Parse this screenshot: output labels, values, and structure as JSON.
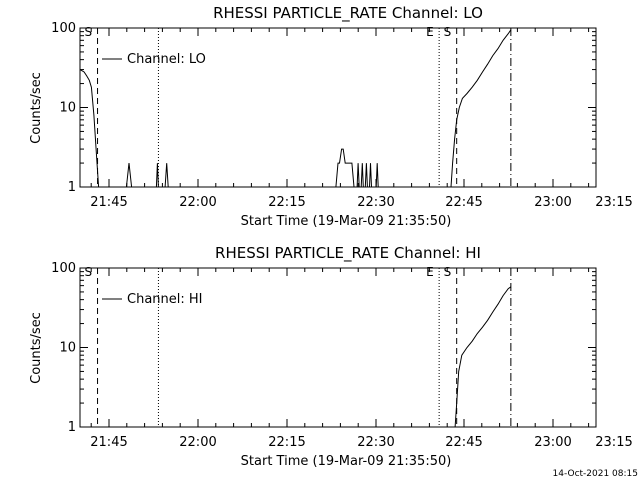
{
  "footer_timestamp": "14-Oct-2021 08:15",
  "chart_data": [
    {
      "type": "line",
      "title": "RHESSI PARTICLE_RATE Channel: LO",
      "xlabel": "Start Time (19-Mar-09 21:35:50)",
      "ylabel": "Counts/sec",
      "x_unit": "minutes after 21:35:50",
      "xlim": [
        0,
        100
      ],
      "ylim": [
        1,
        100
      ],
      "yscale": "log",
      "xticks": [
        "21:45",
        "22:00",
        "22:15",
        "22:30",
        "22:45",
        "23:00",
        "23:15"
      ],
      "yticks": [
        "1",
        "10",
        "100"
      ],
      "legend": "Channel: LO",
      "markers": [
        {
          "label": "S",
          "style": "dashed",
          "x": 3.4
        },
        {
          "label": "",
          "style": "dotted",
          "x": 15.2
        },
        {
          "label": "E",
          "style": "dotted",
          "x": 69.6
        },
        {
          "label": "S",
          "style": "dashed",
          "x": 73.0
        },
        {
          "label": "",
          "style": "dashdot",
          "x": 83.5
        }
      ],
      "series": [
        {
          "name": "Channel: LO",
          "segments": [
            {
              "x": [
                0,
                0.8,
                1.3,
                1.8,
                2.2,
                2.7,
                3.2,
                3.6
              ],
              "y": [
                30,
                28,
                25,
                22,
                18,
                8,
                2.5,
                1
              ]
            },
            {
              "x": [
                9.0,
                9.5,
                10.0
              ],
              "y": [
                1,
                2,
                1
              ]
            },
            {
              "x": [
                14.8,
                15.0,
                15.2
              ],
              "y": [
                1,
                2,
                1
              ]
            },
            {
              "x": [
                16.5,
                16.8,
                17.1
              ],
              "y": [
                1,
                2,
                1
              ]
            },
            {
              "x": [
                49.6,
                50.0,
                50.3,
                50.7,
                51.0,
                51.4,
                51.8,
                52.3,
                52.7,
                53.1
              ],
              "y": [
                1,
                2,
                2,
                3,
                3,
                2,
                2,
                2,
                2,
                1
              ]
            },
            {
              "x": [
                53.7,
                53.9,
                54.1
              ],
              "y": [
                1,
                2,
                1
              ]
            },
            {
              "x": [
                54.5,
                54.7,
                54.9
              ],
              "y": [
                1,
                2,
                1
              ]
            },
            {
              "x": [
                55.3,
                55.5,
                55.7
              ],
              "y": [
                1,
                2,
                1
              ]
            },
            {
              "x": [
                56.1,
                56.3,
                56.5
              ],
              "y": [
                1,
                2,
                1
              ]
            },
            {
              "x": [
                57.4,
                57.6,
                57.8
              ],
              "y": [
                1,
                2,
                1
              ]
            },
            {
              "x": [
                71.9,
                72.2,
                72.6,
                73.0,
                73.5,
                74.1,
                75.0,
                76.0,
                77.0,
                78.0,
                79.0,
                80.0,
                81.0,
                82.0,
                83.0,
                83.5
              ],
              "y": [
                1,
                2,
                4,
                7,
                10,
                13,
                15,
                18,
                22,
                28,
                35,
                45,
                55,
                70,
                85,
                95
              ]
            }
          ]
        }
      ]
    },
    {
      "type": "line",
      "title": "RHESSI PARTICLE_RATE Channel: HI",
      "xlabel": "Start Time (19-Mar-09 21:35:50)",
      "ylabel": "Counts/sec",
      "x_unit": "minutes after 21:35:50",
      "xlim": [
        0,
        100
      ],
      "ylim": [
        1,
        100
      ],
      "yscale": "log",
      "xticks": [
        "21:45",
        "22:00",
        "22:15",
        "22:30",
        "22:45",
        "23:00",
        "23:15"
      ],
      "yticks": [
        "1",
        "10",
        "100"
      ],
      "legend": "Channel: HI",
      "markers": [
        {
          "label": "S",
          "style": "dashed",
          "x": 3.4
        },
        {
          "label": "",
          "style": "dotted",
          "x": 15.2
        },
        {
          "label": "E",
          "style": "dotted",
          "x": 69.6
        },
        {
          "label": "S",
          "style": "dashed",
          "x": 73.0
        },
        {
          "label": "",
          "style": "dashdot",
          "x": 83.5
        }
      ],
      "series": [
        {
          "name": "Channel: HI",
          "segments": [
            {
              "x": [
                72.7,
                73.0,
                73.4,
                74.0,
                75.0,
                76.0,
                77.0,
                78.0,
                79.0,
                80.0,
                81.0,
                82.0,
                83.0,
                83.5
              ],
              "y": [
                1,
                2,
                5,
                8,
                10,
                12,
                15,
                18,
                22,
                28,
                35,
                45,
                55,
                58
              ]
            }
          ]
        }
      ]
    }
  ]
}
